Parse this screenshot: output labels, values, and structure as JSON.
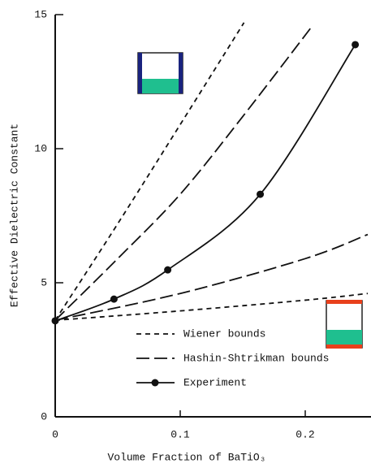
{
  "chart_data": {
    "type": "line",
    "xlabel": "Volume Fraction of BaTiO₃",
    "ylabel": "Effective Dielectric Constant",
    "xlim": [
      0,
      0.25
    ],
    "ylim": [
      0,
      15
    ],
    "xticks": [
      0,
      0.1,
      0.2
    ],
    "yticks": [
      0,
      5,
      10,
      15
    ],
    "series": [
      {
        "name": "Wiener bounds",
        "color": "#111111",
        "dash": "6 5",
        "markers": false,
        "lines": [
          {
            "x": [
              0,
              0.05,
              0.1,
              0.151
            ],
            "values": [
              3.6,
              7.2,
              10.9,
              14.7
            ]
          },
          {
            "x": [
              0,
              0.1,
              0.2,
              0.25
            ],
            "values": [
              3.6,
              3.95,
              4.35,
              4.6
            ]
          }
        ]
      },
      {
        "name": "Hashin-Shtrikman bounds",
        "color": "#111111",
        "dash": "16 6",
        "markers": false,
        "lines": [
          {
            "x": [
              0,
              0.05,
              0.1,
              0.15,
              0.206
            ],
            "values": [
              3.6,
              5.9,
              8.3,
              11.2,
              14.6
            ]
          },
          {
            "x": [
              0,
              0.1,
              0.2,
              0.25
            ],
            "values": [
              3.6,
              4.6,
              5.9,
              6.8
            ]
          }
        ]
      },
      {
        "name": "Experiment",
        "color": "#111111",
        "dash": "",
        "markers": true,
        "lines": [
          {
            "x": [
              0,
              0.047,
              0.09,
              0.164,
              0.24
            ],
            "values": [
              3.58,
              4.39,
              5.48,
              8.3,
              13.88
            ]
          }
        ]
      }
    ]
  }
}
